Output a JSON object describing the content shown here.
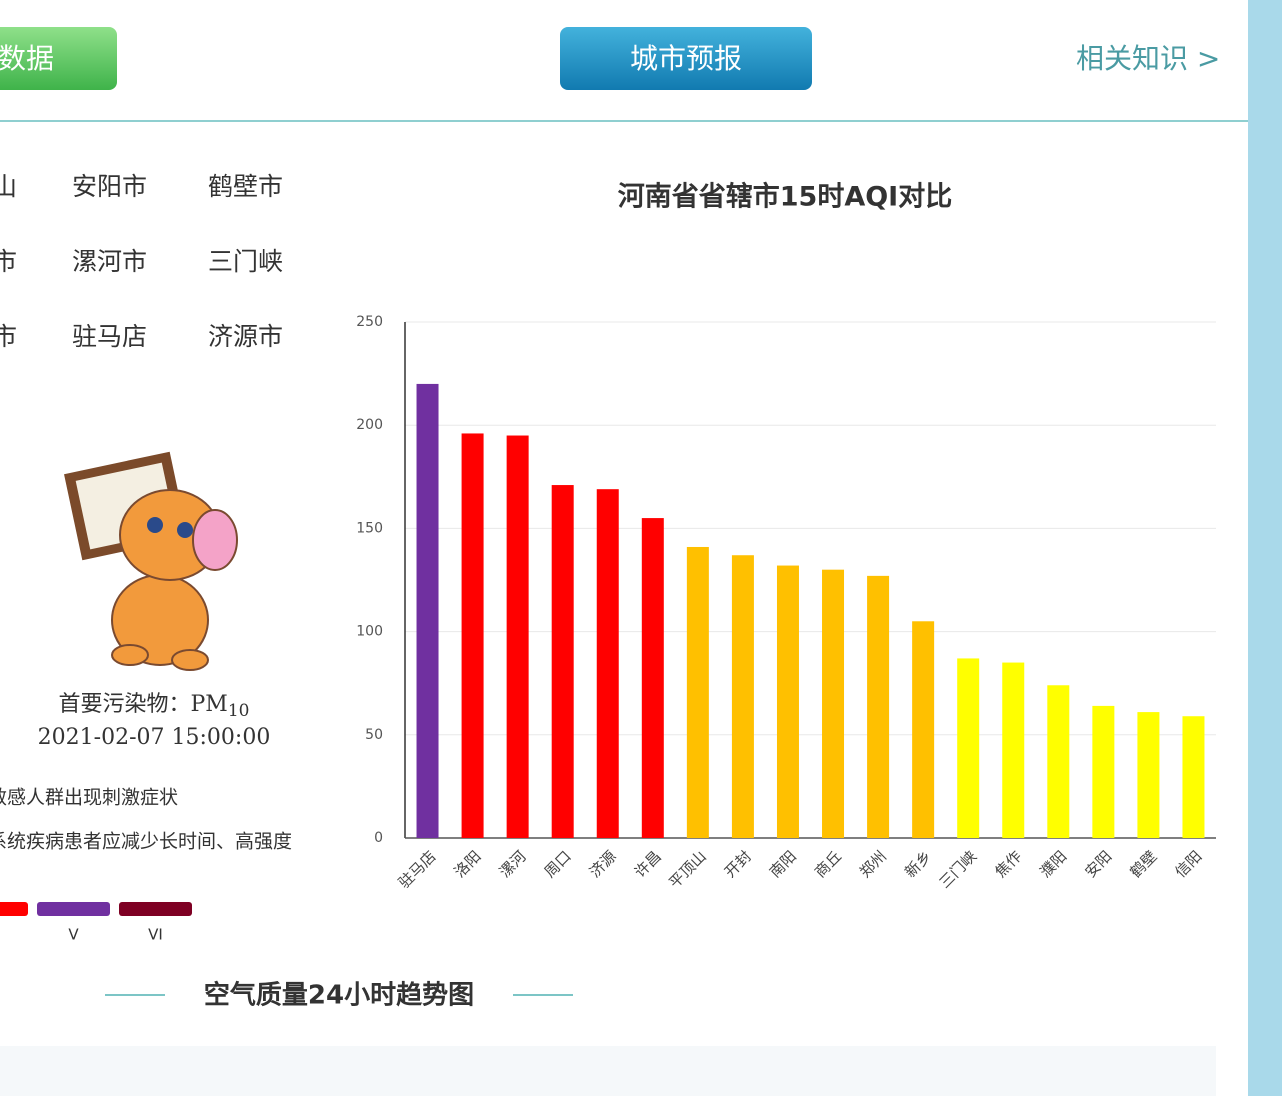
{
  "nav": {
    "left": "数据",
    "center": "城市预报",
    "right": "相关知识 >"
  },
  "cities": [
    [
      "山",
      "安阳市",
      "鹤壁市"
    ],
    [
      "市",
      "漯河市",
      "三门峡"
    ],
    [
      "市",
      "驻马店",
      "济源市"
    ]
  ],
  "pollutant": {
    "label": "首要污染物：PM",
    "sub": "10"
  },
  "time": "2021-02-07 15:00:00",
  "advice": [
    "敏感人群出现刺激症状",
    "系统疾病患者应减少长时间、高强度"
  ],
  "legend": [
    {
      "color": "#ff0000"
    },
    {
      "color": "#7030a0",
      "label": "V"
    },
    {
      "color": "#7e0023",
      "label": "VI"
    }
  ],
  "section_title": "空气质量24小时趋势图",
  "chart_data": {
    "type": "bar",
    "title": "河南省省辖市15时AQI对比",
    "categories": [
      "驻马店",
      "洛阳",
      "漯河",
      "周口",
      "济源",
      "许昌",
      "平顶山",
      "开封",
      "南阳",
      "商丘",
      "郑州",
      "新乡",
      "三门峡",
      "焦作",
      "濮阳",
      "安阳",
      "鹤壁",
      "信阳"
    ],
    "values": [
      220,
      196,
      195,
      171,
      169,
      155,
      141,
      137,
      132,
      130,
      127,
      105,
      87,
      85,
      74,
      64,
      61,
      59
    ],
    "colors": [
      "#7030a0",
      "#ff0000",
      "#ff0000",
      "#ff0000",
      "#ff0000",
      "#ff0000",
      "#ffc000",
      "#ffc000",
      "#ffc000",
      "#ffc000",
      "#ffc000",
      "#ffc000",
      "#ffff00",
      "#ffff00",
      "#ffff00",
      "#ffff00",
      "#ffff00",
      "#ffff00"
    ],
    "ylim": [
      0,
      250
    ],
    "yticks": [
      0,
      50,
      100,
      150,
      200,
      250
    ],
    "grid": true
  }
}
